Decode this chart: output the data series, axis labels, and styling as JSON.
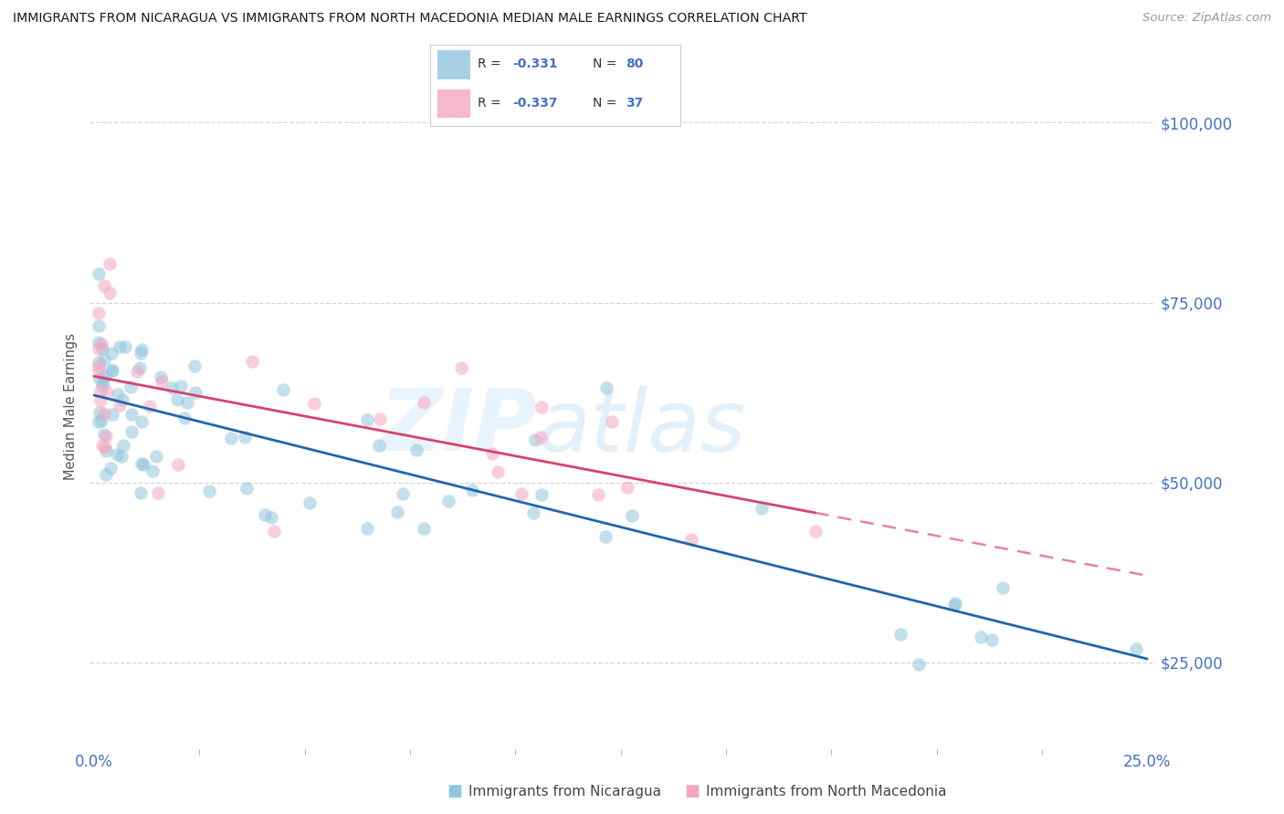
{
  "title": "IMMIGRANTS FROM NICARAGUA VS IMMIGRANTS FROM NORTH MACEDONIA MEDIAN MALE EARNINGS CORRELATION CHART",
  "source": "Source: ZipAtlas.com",
  "xlabel_nicaragua": "Immigrants from Nicaragua",
  "xlabel_macedonia": "Immigrants from North Macedonia",
  "ylabel": "Median Male Earnings",
  "color_nicaragua": "#92c5de",
  "color_macedonia": "#f4a6c0",
  "color_nicaragua_line": "#2166ac",
  "color_macedonia_line": "#d6436a",
  "color_axis": "#4472c4",
  "watermark_zip": "ZIP",
  "watermark_atlas": "atlas",
  "legend_r_nic": "-0.331",
  "legend_n_nic": "80",
  "legend_r_mac": "-0.337",
  "legend_n_mac": "37",
  "background_color": "#ffffff"
}
